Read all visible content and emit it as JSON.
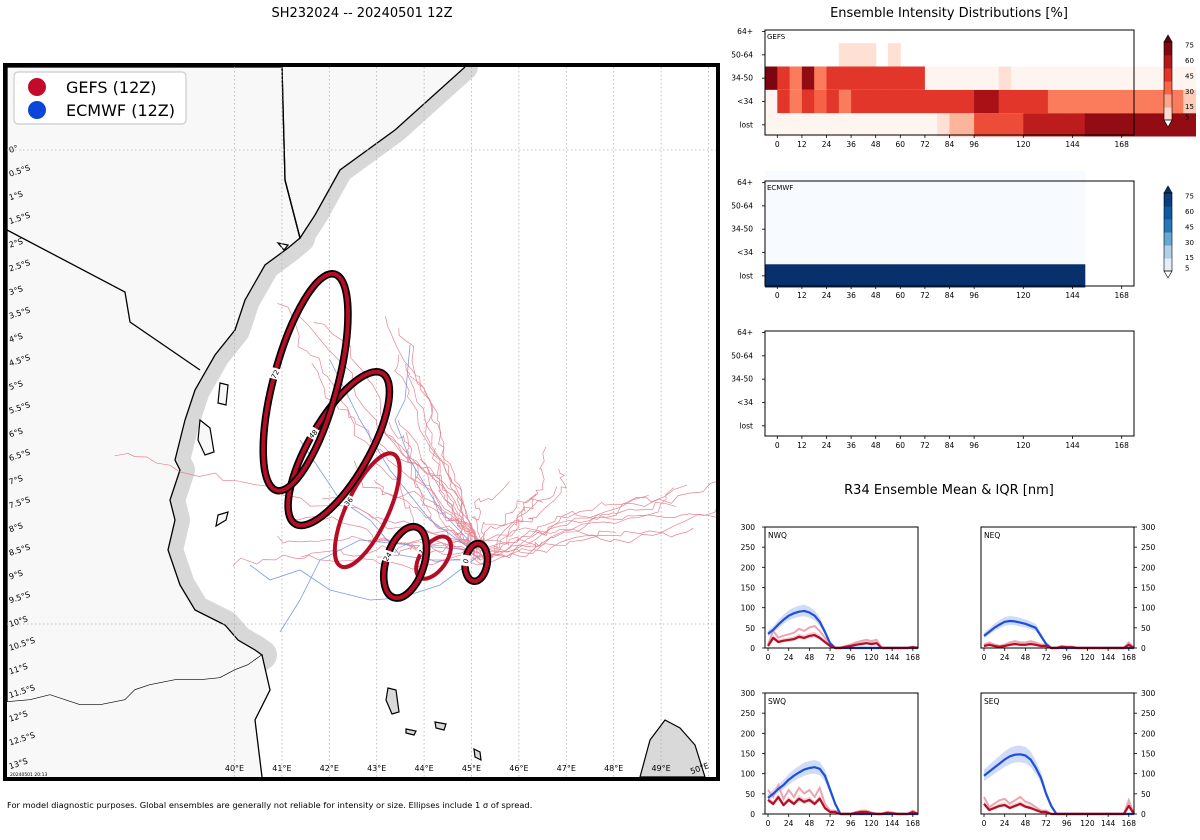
{
  "title": "SH232024 -- 20240501 12Z",
  "footer_note": "For model diagnostic purposes. Global ensembles are generally not reliable for intensity or size. Ellipses include 1 σ of spread.",
  "map_stamp": "20240501 20:13",
  "colors": {
    "gefs": "#b40d25",
    "ecmwf": "#1f4fd6",
    "gefs_track": "#e07080",
    "ecmwf_track": "#6f90e8"
  },
  "legend": [
    {
      "label": "GEFS (12Z)",
      "color": "#c40a2a"
    },
    {
      "label": "ECMWF (12Z)",
      "color": "#0a46d9"
    }
  ],
  "map": {
    "lon_labels": [
      "40°E",
      "41°E",
      "42°E",
      "43°E",
      "44°E",
      "45°E",
      "46°E",
      "47°E",
      "48°E",
      "49°E",
      "50°E"
    ],
    "lat_labels": [
      "0°",
      "0.5°S",
      "1°S",
      "1.5°S",
      "2°S",
      "2.5°S",
      "3°S",
      "3.5°S",
      "4°S",
      "4.5°S",
      "5°S",
      "5.5°S",
      "6°S",
      "6.5°S",
      "7°S",
      "7.5°S",
      "8°S",
      "8.5°S",
      "9°S",
      "9.5°S",
      "10°S",
      "10.5°S",
      "11°S",
      "11.5°S",
      "12°S",
      "12.5°S",
      "13°S"
    ],
    "ellipses": [
      {
        "tau": "0",
        "lon": 45.1,
        "lat": -8.7
      },
      {
        "tau": "12",
        "lon": 44.2,
        "lat": -8.6
      },
      {
        "tau": "24",
        "lon": 43.6,
        "lat": -8.7
      },
      {
        "tau": "36",
        "lon": 42.8,
        "lat": -7.6
      },
      {
        "tau": "48",
        "lon": 42.2,
        "lat": -6.3
      },
      {
        "tau": "72",
        "lon": 41.5,
        "lat": -4.9
      }
    ]
  },
  "chart_data": [
    {
      "type": "heatmap",
      "title": "Ensemble Intensity Distributions [%]",
      "panel_label": "GEFS",
      "x": [
        0,
        12,
        24,
        36,
        48,
        60,
        72,
        84,
        96,
        120,
        144,
        168
      ],
      "xlim": [
        -6,
        174
      ],
      "x_step": 6,
      "y_categories": [
        "lost",
        "<34",
        "34-50",
        "50-64",
        "64+"
      ],
      "colorbar_ticks": [
        5,
        15,
        30,
        45,
        60,
        75
      ],
      "colormap": "Reds",
      "rows": {
        "lost": [
          5,
          5,
          5,
          5,
          5,
          5,
          5,
          5,
          5,
          5,
          5,
          5,
          5,
          5,
          10,
          20,
          20,
          40,
          40,
          40,
          40,
          55,
          55,
          55,
          55,
          55,
          65,
          65,
          65,
          65,
          65,
          65,
          65,
          65,
          65
        ],
        "<34": [
          5,
          45,
          30,
          45,
          35,
          45,
          30,
          45,
          45,
          45,
          45,
          45,
          45,
          45,
          45,
          45,
          45,
          60,
          60,
          45,
          45,
          45,
          45,
          30,
          30,
          30,
          30,
          30,
          30,
          30,
          30,
          30,
          30,
          30,
          15
        ],
        "34-50": [
          70,
          45,
          30,
          65,
          30,
          45,
          45,
          45,
          45,
          45,
          45,
          45,
          45,
          5,
          5,
          5,
          5,
          5,
          5,
          10,
          5,
          5,
          5,
          5,
          5,
          5,
          5,
          5,
          5,
          5,
          5,
          5,
          5,
          5,
          5
        ],
        "50-64": [
          0,
          0,
          0,
          0,
          0,
          0,
          10,
          10,
          10,
          0,
          10,
          0,
          0,
          0,
          0,
          0,
          0,
          0,
          0,
          0,
          0,
          0,
          0,
          0,
          0,
          0,
          0,
          0,
          0,
          0,
          0,
          0,
          0,
          0,
          0
        ],
        "64+": [
          0,
          0,
          0,
          0,
          0,
          0,
          0,
          0,
          0,
          0,
          0,
          0,
          0,
          0,
          0,
          0,
          0,
          0,
          0,
          0,
          0,
          0,
          0,
          0,
          0,
          0,
          0,
          0,
          0,
          0,
          0,
          0,
          0,
          0,
          0
        ]
      }
    },
    {
      "type": "heatmap",
      "panel_label": "ECMWF",
      "x": [
        0,
        12,
        24,
        36,
        48,
        60,
        72,
        84,
        96,
        120,
        144,
        168
      ],
      "xlim": [
        -6,
        174
      ],
      "x_step": 6,
      "y_categories": [
        "lost",
        "<34",
        "34-50",
        "50-64",
        "64+"
      ],
      "colorbar_ticks": [
        5,
        15,
        30,
        45,
        60,
        75
      ],
      "colormap": "Blues",
      "rows": {
        "lost": [
          100,
          100,
          100,
          100,
          100,
          100,
          100,
          100,
          100,
          100,
          100,
          100,
          100,
          100,
          100,
          100,
          100,
          100,
          100,
          100,
          100,
          100,
          100,
          100,
          100,
          100
        ],
        "<34": [
          0,
          0,
          0,
          0,
          0,
          0,
          0,
          0,
          0,
          0,
          0,
          0,
          0,
          0,
          0,
          0,
          0,
          0,
          0,
          0,
          0,
          0,
          0,
          0,
          0,
          0
        ],
        "34-50": [
          0,
          0,
          0,
          0,
          0,
          0,
          0,
          0,
          0,
          0,
          0,
          0,
          0,
          0,
          0,
          0,
          0,
          0,
          0,
          0,
          0,
          0,
          0,
          0,
          0,
          0
        ],
        "50-64": [
          0,
          0,
          0,
          0,
          0,
          0,
          0,
          0,
          0,
          0,
          0,
          0,
          0,
          0,
          0,
          0,
          0,
          0,
          0,
          0,
          0,
          0,
          0,
          0,
          0,
          0
        ],
        "64+": [
          0,
          0,
          0,
          0,
          0,
          0,
          0,
          0,
          0,
          0,
          0,
          0,
          0,
          0,
          0,
          0,
          0,
          0,
          0,
          0,
          0,
          0,
          0,
          0,
          0,
          0
        ]
      }
    },
    {
      "type": "heatmap",
      "panel_label": "",
      "x": [
        0,
        12,
        24,
        36,
        48,
        60,
        72,
        84,
        96,
        120,
        144,
        168
      ],
      "xlim": [
        -6,
        174
      ],
      "x_step": 6,
      "y_categories": [
        "lost",
        "<34",
        "34-50",
        "50-64",
        "64+"
      ],
      "colorbar_ticks": [],
      "colormap": "none",
      "rows": {}
    },
    {
      "type": "line",
      "title": "R34 Ensemble Mean & IQR [nm]",
      "quadrant": "NWQ",
      "ylim": [
        0,
        300
      ],
      "xlim": [
        0,
        174
      ],
      "x": [
        0,
        6,
        12,
        18,
        24,
        30,
        36,
        42,
        48,
        54,
        60,
        66,
        72,
        78,
        84,
        90,
        96,
        102,
        108,
        114,
        120,
        126,
        132,
        138,
        144,
        150,
        156,
        162,
        168,
        174
      ],
      "xticks": [
        0,
        24,
        48,
        72,
        96,
        120,
        144,
        168
      ],
      "yticks": [
        0,
        50,
        100,
        150,
        200,
        250,
        300
      ],
      "y_axis_side": "left",
      "series": [
        {
          "name": "ECMWF mean",
          "color": "#1f4fd6",
          "values": [
            35,
            45,
            58,
            70,
            80,
            86,
            90,
            92,
            88,
            80,
            65,
            40,
            12,
            0,
            0,
            0,
            0,
            0,
            0,
            0,
            0,
            0,
            0,
            0,
            0,
            0,
            0,
            0,
            0,
            0
          ]
        },
        {
          "name": "GEFS mean",
          "color": "#b40d25",
          "values": [
            5,
            25,
            15,
            18,
            20,
            22,
            28,
            25,
            30,
            32,
            25,
            15,
            5,
            0,
            0,
            3,
            5,
            8,
            10,
            12,
            10,
            12,
            0,
            0,
            0,
            0,
            0,
            0,
            2,
            0
          ]
        }
      ]
    },
    {
      "type": "line",
      "quadrant": "NEQ",
      "ylim": [
        0,
        300
      ],
      "xlim": [
        0,
        174
      ],
      "x": [
        0,
        6,
        12,
        18,
        24,
        30,
        36,
        42,
        48,
        54,
        60,
        66,
        72,
        78,
        84,
        90,
        96,
        102,
        108,
        114,
        120,
        126,
        132,
        138,
        144,
        150,
        156,
        162,
        168,
        174
      ],
      "xticks": [
        0,
        24,
        48,
        72,
        96,
        120,
        144,
        168
      ],
      "yticks": [
        0,
        50,
        100,
        150,
        200,
        250,
        300
      ],
      "y_axis_side": "right",
      "series": [
        {
          "name": "ECMWF mean",
          "color": "#1f4fd6",
          "values": [
            30,
            40,
            50,
            58,
            65,
            67,
            66,
            63,
            60,
            55,
            50,
            30,
            10,
            0,
            0,
            0,
            0,
            0,
            0,
            0,
            0,
            0,
            0,
            0,
            0,
            0,
            0,
            0,
            0,
            0
          ]
        },
        {
          "name": "GEFS mean",
          "color": "#b40d25",
          "values": [
            5,
            8,
            5,
            3,
            5,
            8,
            10,
            8,
            8,
            10,
            8,
            5,
            5,
            0,
            0,
            3,
            2,
            2,
            0,
            0,
            0,
            0,
            0,
            0,
            0,
            0,
            0,
            0,
            8,
            0
          ]
        }
      ]
    },
    {
      "type": "line",
      "quadrant": "SWQ",
      "ylim": [
        0,
        300
      ],
      "xlim": [
        0,
        174
      ],
      "x": [
        0,
        6,
        12,
        18,
        24,
        30,
        36,
        42,
        48,
        54,
        60,
        66,
        72,
        78,
        84,
        90,
        96,
        102,
        108,
        114,
        120,
        126,
        132,
        138,
        144,
        150,
        156,
        162,
        168,
        174
      ],
      "xticks": [
        0,
        24,
        48,
        72,
        96,
        120,
        144,
        168
      ],
      "yticks": [
        0,
        50,
        100,
        150,
        200,
        250,
        300
      ],
      "y_axis_side": "left",
      "series": [
        {
          "name": "ECMWF mean",
          "color": "#1f4fd6",
          "values": [
            40,
            50,
            62,
            72,
            85,
            95,
            103,
            110,
            114,
            116,
            112,
            95,
            60,
            25,
            0,
            0,
            0,
            0,
            0,
            0,
            0,
            0,
            0,
            0,
            0,
            0,
            0,
            0,
            0,
            0
          ]
        },
        {
          "name": "GEFS mean",
          "color": "#b40d25",
          "values": [
            35,
            25,
            42,
            22,
            35,
            25,
            38,
            30,
            35,
            25,
            38,
            15,
            5,
            5,
            0,
            0,
            0,
            3,
            5,
            5,
            2,
            0,
            0,
            3,
            2,
            0,
            0,
            0,
            5,
            0
          ]
        }
      ]
    },
    {
      "type": "line",
      "quadrant": "SEQ",
      "ylim": [
        0,
        300
      ],
      "xlim": [
        0,
        174
      ],
      "x": [
        0,
        6,
        12,
        18,
        24,
        30,
        36,
        42,
        48,
        54,
        60,
        66,
        72,
        78,
        84,
        90,
        96,
        102,
        108,
        114,
        120,
        126,
        132,
        138,
        144,
        150,
        156,
        162,
        168,
        174
      ],
      "xticks": [
        0,
        24,
        48,
        72,
        96,
        120,
        144,
        168
      ],
      "yticks": [
        0,
        50,
        100,
        150,
        200,
        250,
        300
      ],
      "y_axis_side": "right",
      "series": [
        {
          "name": "ECMWF mean",
          "color": "#1f4fd6",
          "values": [
            95,
            105,
            115,
            125,
            135,
            143,
            147,
            148,
            145,
            135,
            115,
            90,
            50,
            20,
            0,
            0,
            0,
            0,
            0,
            0,
            0,
            0,
            0,
            0,
            0,
            0,
            0,
            0,
            0,
            0
          ]
        },
        {
          "name": "GEFS mean",
          "color": "#b40d25",
          "values": [
            25,
            10,
            15,
            20,
            22,
            15,
            20,
            25,
            18,
            15,
            10,
            5,
            5,
            0,
            0,
            0,
            0,
            0,
            0,
            0,
            0,
            0,
            0,
            0,
            0,
            0,
            0,
            0,
            20,
            0
          ]
        }
      ]
    }
  ]
}
